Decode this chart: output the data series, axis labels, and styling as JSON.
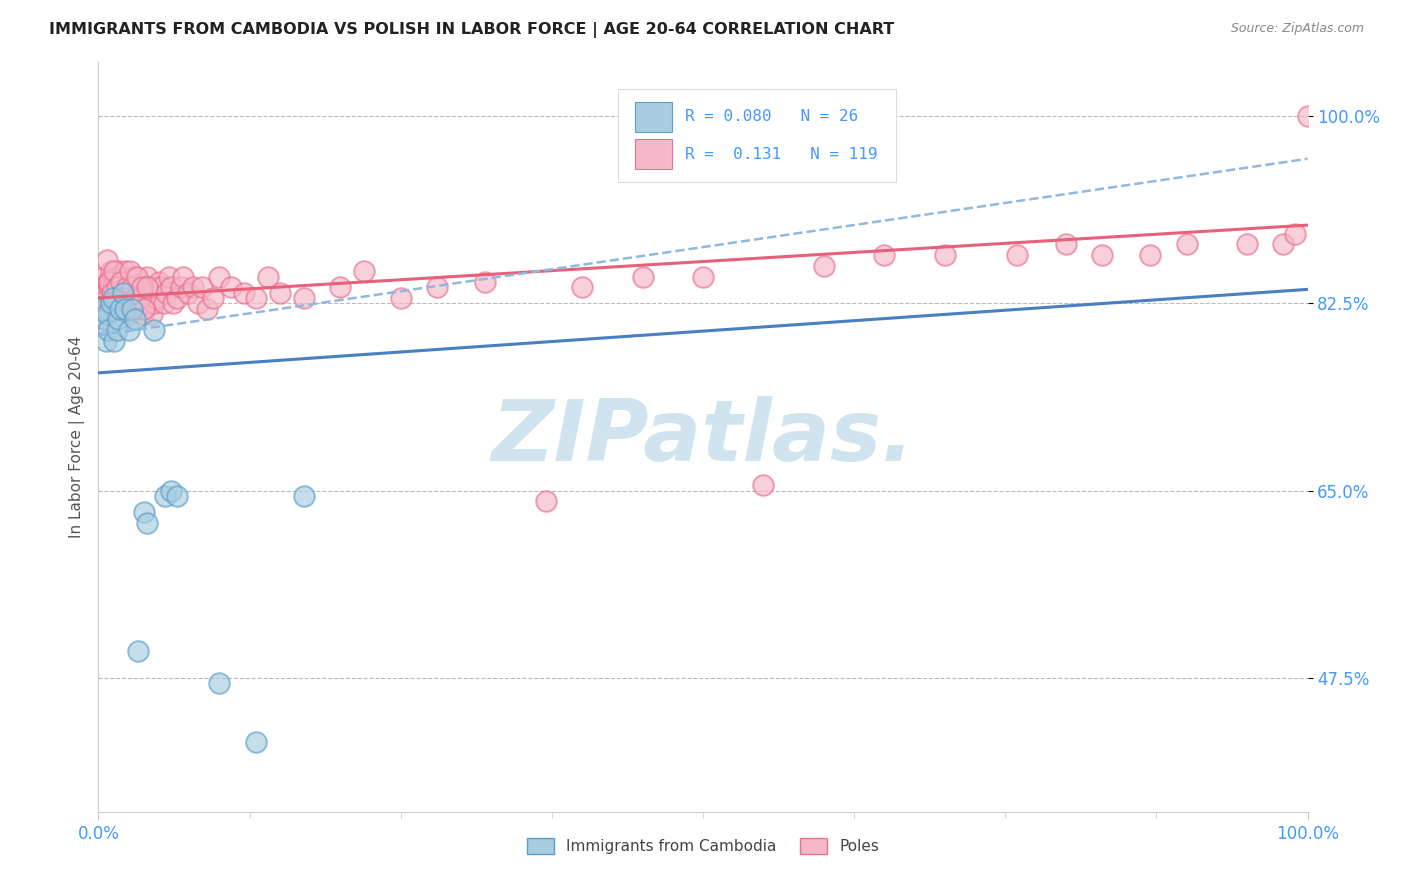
{
  "title": "IMMIGRANTS FROM CAMBODIA VS POLISH IN LABOR FORCE | AGE 20-64 CORRELATION CHART",
  "source": "Source: ZipAtlas.com",
  "ylabel": "In Labor Force | Age 20-64",
  "xlim": [
    0.0,
    1.0
  ],
  "ylim": [
    0.35,
    1.05
  ],
  "y_tick_labels": [
    "47.5%",
    "65.0%",
    "82.5%",
    "100.0%"
  ],
  "y_tick_positions": [
    0.475,
    0.65,
    0.825,
    1.0
  ],
  "r_cambodia": "0.080",
  "n_cambodia": "26",
  "r_poles": "0.131",
  "n_poles": "119",
  "legend_label_cambodia": "Immigrants from Cambodia",
  "legend_label_poles": "Poles",
  "color_cambodia_face": "#a8cce0",
  "color_cambodia_edge": "#5b9ec9",
  "color_poles_face": "#f5b8c8",
  "color_poles_edge": "#e87090",
  "line_color_cambodia": "#4a7fc1",
  "line_color_poles": "#e8607a",
  "line_color_dashed": "#90b8e0",
  "background_color": "#ffffff",
  "grid_color": "#bbbbbb",
  "watermark_color": "#d0e4f0",
  "title_color": "#222222",
  "source_color": "#888888",
  "tick_color": "#4499ff",
  "ylabel_color": "#555555",
  "legend_text_color": "#222222",
  "legend_value_color": "#4499ff",
  "cambodia_x": [
    0.003,
    0.005,
    0.006,
    0.007,
    0.008,
    0.01,
    0.012,
    0.013,
    0.015,
    0.016,
    0.018,
    0.02,
    0.022,
    0.025,
    0.028,
    0.03,
    0.033,
    0.038,
    0.04,
    0.046,
    0.055,
    0.06,
    0.065,
    0.1,
    0.13,
    0.17
  ],
  "cambodia_y": [
    0.82,
    0.81,
    0.79,
    0.815,
    0.8,
    0.825,
    0.83,
    0.79,
    0.8,
    0.81,
    0.82,
    0.835,
    0.82,
    0.8,
    0.82,
    0.81,
    0.5,
    0.63,
    0.62,
    0.8,
    0.645,
    0.65,
    0.645,
    0.47,
    0.415,
    0.645
  ],
  "poles_x": [
    0.002,
    0.003,
    0.004,
    0.005,
    0.005,
    0.006,
    0.006,
    0.007,
    0.008,
    0.008,
    0.009,
    0.01,
    0.01,
    0.011,
    0.012,
    0.012,
    0.013,
    0.014,
    0.015,
    0.015,
    0.016,
    0.016,
    0.017,
    0.018,
    0.018,
    0.019,
    0.02,
    0.02,
    0.021,
    0.022,
    0.022,
    0.023,
    0.024,
    0.025,
    0.026,
    0.027,
    0.028,
    0.029,
    0.03,
    0.031,
    0.032,
    0.033,
    0.034,
    0.035,
    0.036,
    0.037,
    0.038,
    0.039,
    0.04,
    0.041,
    0.042,
    0.043,
    0.044,
    0.045,
    0.046,
    0.047,
    0.048,
    0.05,
    0.052,
    0.054,
    0.056,
    0.058,
    0.06,
    0.062,
    0.065,
    0.068,
    0.07,
    0.074,
    0.078,
    0.082,
    0.086,
    0.09,
    0.095,
    0.1,
    0.11,
    0.12,
    0.13,
    0.14,
    0.15,
    0.17,
    0.2,
    0.22,
    0.25,
    0.28,
    0.32,
    0.37,
    0.4,
    0.45,
    0.5,
    0.55,
    0.6,
    0.65,
    0.7,
    0.76,
    0.8,
    0.83,
    0.87,
    0.9,
    0.95,
    0.98,
    0.99,
    1.0,
    0.007,
    0.009,
    0.011,
    0.013,
    0.015,
    0.017,
    0.019,
    0.021,
    0.024,
    0.026,
    0.028,
    0.03,
    0.032,
    0.034,
    0.036,
    0.038,
    0.04
  ],
  "poles_y": [
    0.83,
    0.82,
    0.84,
    0.85,
    0.81,
    0.835,
    0.82,
    0.83,
    0.845,
    0.82,
    0.84,
    0.825,
    0.855,
    0.835,
    0.82,
    0.84,
    0.83,
    0.85,
    0.825,
    0.84,
    0.83,
    0.855,
    0.84,
    0.825,
    0.845,
    0.83,
    0.85,
    0.82,
    0.84,
    0.83,
    0.855,
    0.84,
    0.825,
    0.815,
    0.84,
    0.825,
    0.84,
    0.835,
    0.85,
    0.82,
    0.84,
    0.83,
    0.825,
    0.84,
    0.82,
    0.815,
    0.84,
    0.825,
    0.85,
    0.83,
    0.84,
    0.825,
    0.815,
    0.84,
    0.825,
    0.84,
    0.83,
    0.845,
    0.84,
    0.825,
    0.835,
    0.85,
    0.84,
    0.825,
    0.83,
    0.84,
    0.85,
    0.835,
    0.84,
    0.825,
    0.84,
    0.82,
    0.83,
    0.85,
    0.84,
    0.835,
    0.83,
    0.85,
    0.835,
    0.83,
    0.84,
    0.855,
    0.83,
    0.84,
    0.845,
    0.64,
    0.84,
    0.85,
    0.85,
    0.655,
    0.86,
    0.87,
    0.87,
    0.87,
    0.88,
    0.87,
    0.87,
    0.88,
    0.88,
    0.88,
    0.89,
    1.0,
    0.865,
    0.845,
    0.835,
    0.855,
    0.84,
    0.83,
    0.845,
    0.83,
    0.84,
    0.855,
    0.84,
    0.83,
    0.85,
    0.83,
    0.84,
    0.82,
    0.84
  ]
}
